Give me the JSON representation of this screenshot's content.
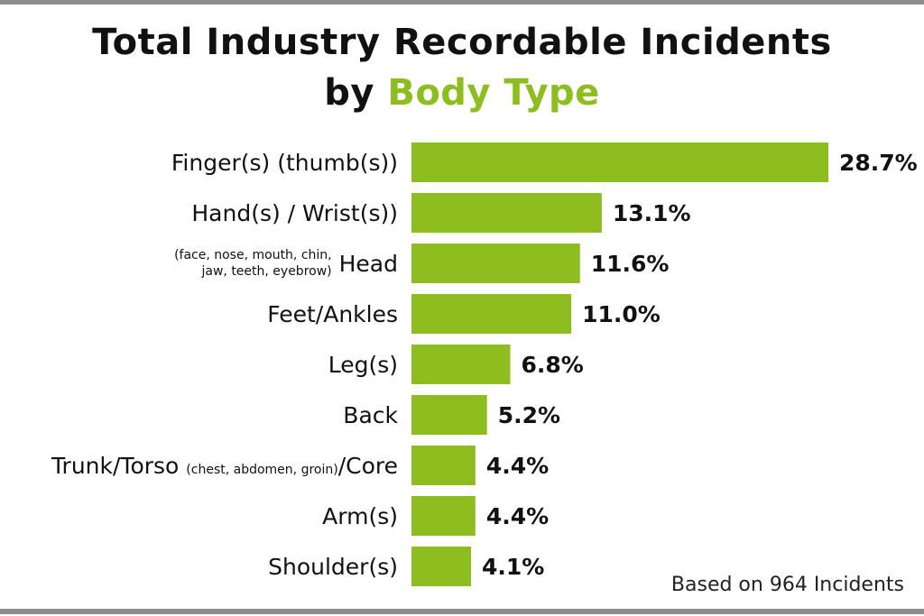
{
  "title": {
    "line1": "Total Industry Recordable Incidents",
    "line2_prefix": "by ",
    "line2_accent": "Body Type"
  },
  "footnote": "Based on 964 Incidents",
  "colors": {
    "bar": "#8dbd1f",
    "accent": "#8dbd1f",
    "rule": "#8c8c8c"
  },
  "chart_data": {
    "type": "bar",
    "orientation": "horizontal",
    "title": "Total Industry Recordable Incidents by Body Type",
    "categories": [
      "Finger(s) (thumb(s))",
      "Hand(s) / Wrist(s))",
      "Head",
      "Feet/Ankles",
      "Leg(s)",
      "Back",
      "Trunk/Torso (chest, abdomen, groin)/Core",
      "Arm(s)",
      "Shoulder(s)"
    ],
    "values": [
      28.7,
      13.1,
      11.6,
      11.0,
      6.8,
      5.2,
      4.4,
      4.4,
      4.1
    ],
    "data_labels": [
      "28.7%",
      "13.1%",
      "11.6%",
      "11.0%",
      "6.8%",
      "5.2%",
      "4.4%",
      "4.4%",
      "4.1%"
    ],
    "label_parts": [
      {
        "main": "Finger(s) (thumb(s))"
      },
      {
        "main": "Hand(s) / Wrist(s))"
      },
      {
        "main": "Head",
        "note_lines": [
          "(face, nose, mouth, chin,",
          "jaw, teeth, eyebrow)"
        ]
      },
      {
        "main": "Feet/Ankles"
      },
      {
        "main": "Leg(s)"
      },
      {
        "main": "Back"
      },
      {
        "pre": "Trunk/Torso ",
        "note": "(chest, abdomen, groin)",
        "post": "/Core"
      },
      {
        "main": "Arm(s)"
      },
      {
        "main": "Shoulder(s)"
      }
    ],
    "xlim": [
      0,
      28.7
    ],
    "grid": false,
    "legend": "none"
  }
}
